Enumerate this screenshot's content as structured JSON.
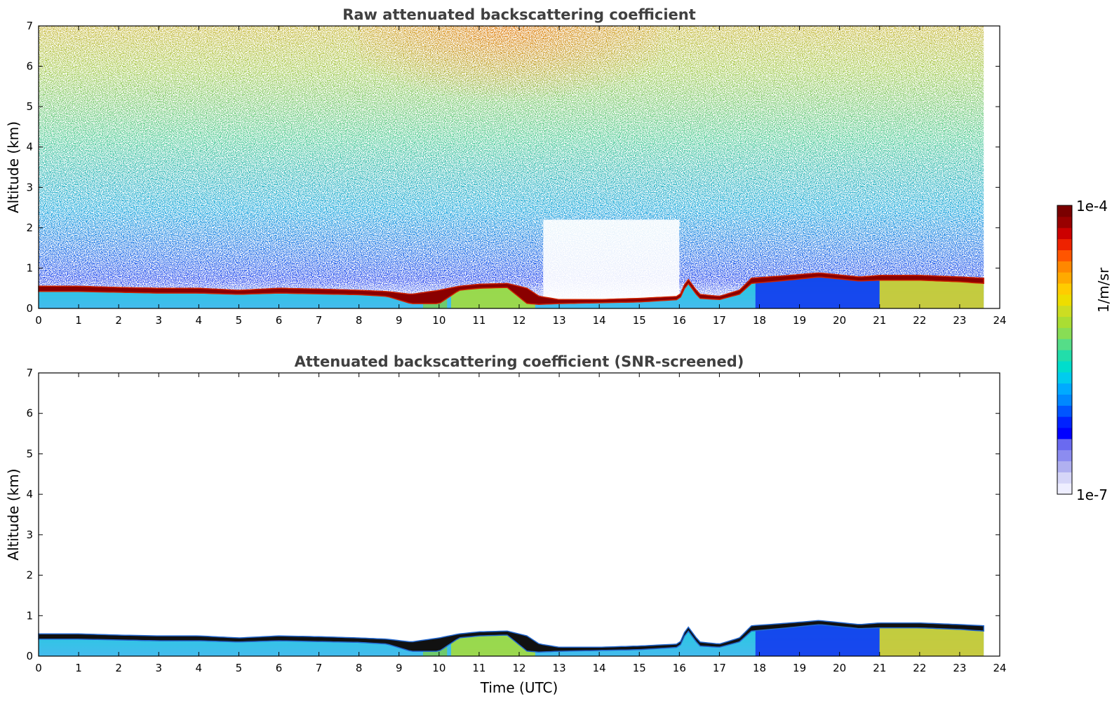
{
  "chart_data": [
    {
      "type": "heatmap",
      "title": "Raw attenuated backscattering coefficient",
      "xlabel": "",
      "ylabel": "Altitude (km)",
      "xlim": [
        0,
        24
      ],
      "ylim": [
        0,
        7
      ],
      "xticks": [
        "0",
        "1",
        "2",
        "3",
        "4",
        "5",
        "6",
        "7",
        "8",
        "9",
        "10",
        "11",
        "12",
        "13",
        "14",
        "15",
        "16",
        "17",
        "18",
        "19",
        "20",
        "21",
        "22",
        "23",
        "24"
      ],
      "yticks": [
        "0",
        "1",
        "2",
        "3",
        "4",
        "5",
        "6",
        "7"
      ],
      "data_end_time": 23.6,
      "noise_above_layer": true,
      "layer_top_km": [
        [
          0,
          0.55
        ],
        [
          1,
          0.55
        ],
        [
          2,
          0.52
        ],
        [
          3,
          0.5
        ],
        [
          4,
          0.5
        ],
        [
          5,
          0.45
        ],
        [
          6,
          0.5
        ],
        [
          7,
          0.48
        ],
        [
          8,
          0.45
        ],
        [
          8.7,
          0.42
        ],
        [
          9.3,
          0.35
        ],
        [
          10,
          0.45
        ],
        [
          10.5,
          0.55
        ],
        [
          11,
          0.6
        ],
        [
          11.7,
          0.62
        ],
        [
          12.2,
          0.5
        ],
        [
          12.5,
          0.3
        ],
        [
          13,
          0.22
        ],
        [
          14,
          0.22
        ],
        [
          15,
          0.25
        ],
        [
          16,
          0.3
        ],
        [
          16.2,
          0.75
        ],
        [
          16.5,
          0.35
        ],
        [
          17,
          0.3
        ],
        [
          17.5,
          0.45
        ],
        [
          17.8,
          0.75
        ],
        [
          18.5,
          0.8
        ],
        [
          19.5,
          0.88
        ],
        [
          20.5,
          0.78
        ],
        [
          21,
          0.82
        ],
        [
          22,
          0.82
        ],
        [
          23,
          0.78
        ],
        [
          23.6,
          0.75
        ]
      ],
      "layer_bottom_km": [
        [
          0,
          0.42
        ],
        [
          1,
          0.42
        ],
        [
          2,
          0.4
        ],
        [
          3,
          0.38
        ],
        [
          4,
          0.38
        ],
        [
          5,
          0.35
        ],
        [
          6,
          0.38
        ],
        [
          7,
          0.36
        ],
        [
          8,
          0.34
        ],
        [
          8.7,
          0.3
        ],
        [
          9.3,
          0.12
        ],
        [
          10,
          0.12
        ],
        [
          10.5,
          0.45
        ],
        [
          11,
          0.5
        ],
        [
          11.7,
          0.52
        ],
        [
          12.2,
          0.12
        ],
        [
          12.5,
          0.1
        ],
        [
          13,
          0.12
        ],
        [
          14,
          0.14
        ],
        [
          15,
          0.16
        ],
        [
          16,
          0.22
        ],
        [
          16.2,
          0.65
        ],
        [
          16.5,
          0.25
        ],
        [
          17,
          0.22
        ],
        [
          17.5,
          0.35
        ],
        [
          17.8,
          0.62
        ],
        [
          18.5,
          0.68
        ],
        [
          19.5,
          0.78
        ],
        [
          20.5,
          0.68
        ],
        [
          21,
          0.7
        ],
        [
          22,
          0.7
        ],
        [
          23,
          0.66
        ],
        [
          23.6,
          0.62
        ]
      ]
    },
    {
      "type": "heatmap",
      "title": "Attenuated backscattering coefficient (SNR-screened)",
      "xlabel": "Time (UTC)",
      "ylabel": "Altitude (km)",
      "xlim": [
        0,
        24
      ],
      "ylim": [
        0,
        7
      ],
      "xticks": [
        "0",
        "1",
        "2",
        "3",
        "4",
        "5",
        "6",
        "7",
        "8",
        "9",
        "10",
        "11",
        "12",
        "13",
        "14",
        "15",
        "16",
        "17",
        "18",
        "19",
        "20",
        "21",
        "22",
        "23",
        "24"
      ],
      "yticks": [
        "0",
        "1",
        "2",
        "3",
        "4",
        "5",
        "6",
        "7"
      ],
      "data_end_time": 23.6,
      "noise_above_layer": false
    }
  ],
  "colorbar": {
    "label": "1/m/sr",
    "max_label": "1e-4",
    "min_label": "1e-7",
    "colors": [
      "#eeeeff",
      "#d6d6f8",
      "#b0b0f0",
      "#8c8cf0",
      "#6a6af0",
      "#0000ff",
      "#0022ff",
      "#0055ff",
      "#0088ff",
      "#00aaff",
      "#00ccee",
      "#00ddcc",
      "#22ddaa",
      "#55dd88",
      "#88dd55",
      "#aadd33",
      "#ccdd22",
      "#eedd00",
      "#ffcc00",
      "#ffaa00",
      "#ff8800",
      "#ff5500",
      "#ee2200",
      "#cc0000",
      "#990000",
      "#7a0000"
    ]
  }
}
